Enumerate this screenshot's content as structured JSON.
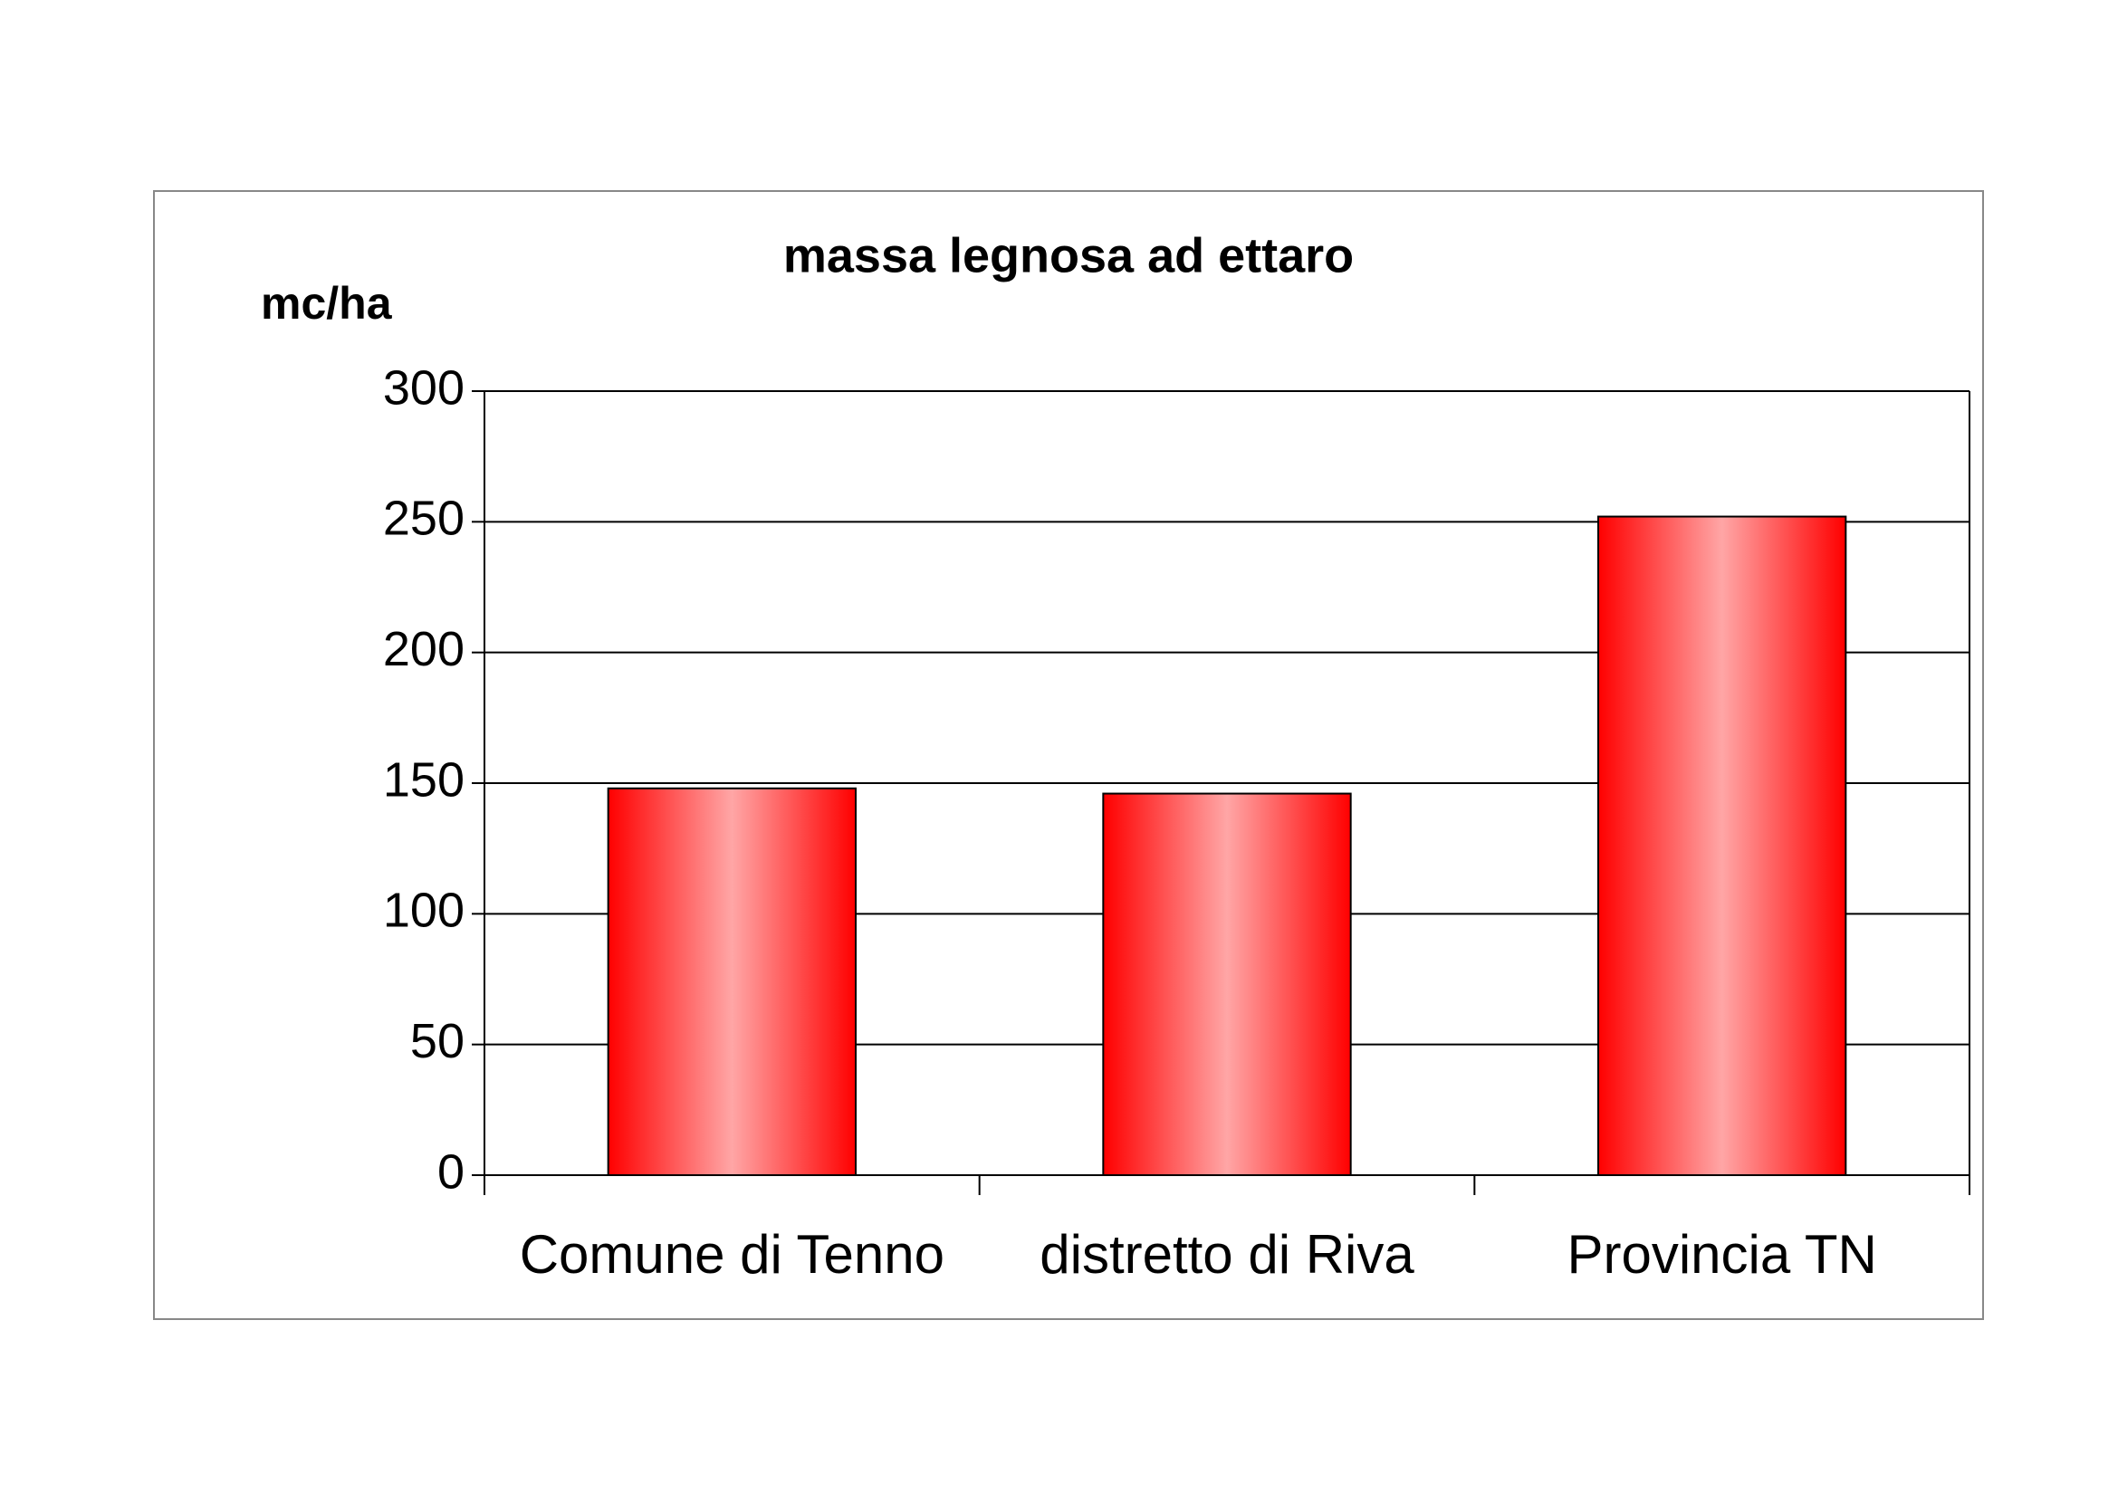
{
  "chart_data": {
    "type": "bar",
    "title": "massa legnosa ad ettaro",
    "y_label": "mc/ha",
    "categories": [
      "Comune di Tenno",
      "distretto di Riva",
      "Provincia TN"
    ],
    "values": [
      148,
      146,
      252
    ],
    "color": "#ff0000",
    "ylim": [
      0,
      300
    ],
    "yticks": [
      0,
      50,
      100,
      150,
      200,
      250,
      300
    ],
    "grid": true
  }
}
